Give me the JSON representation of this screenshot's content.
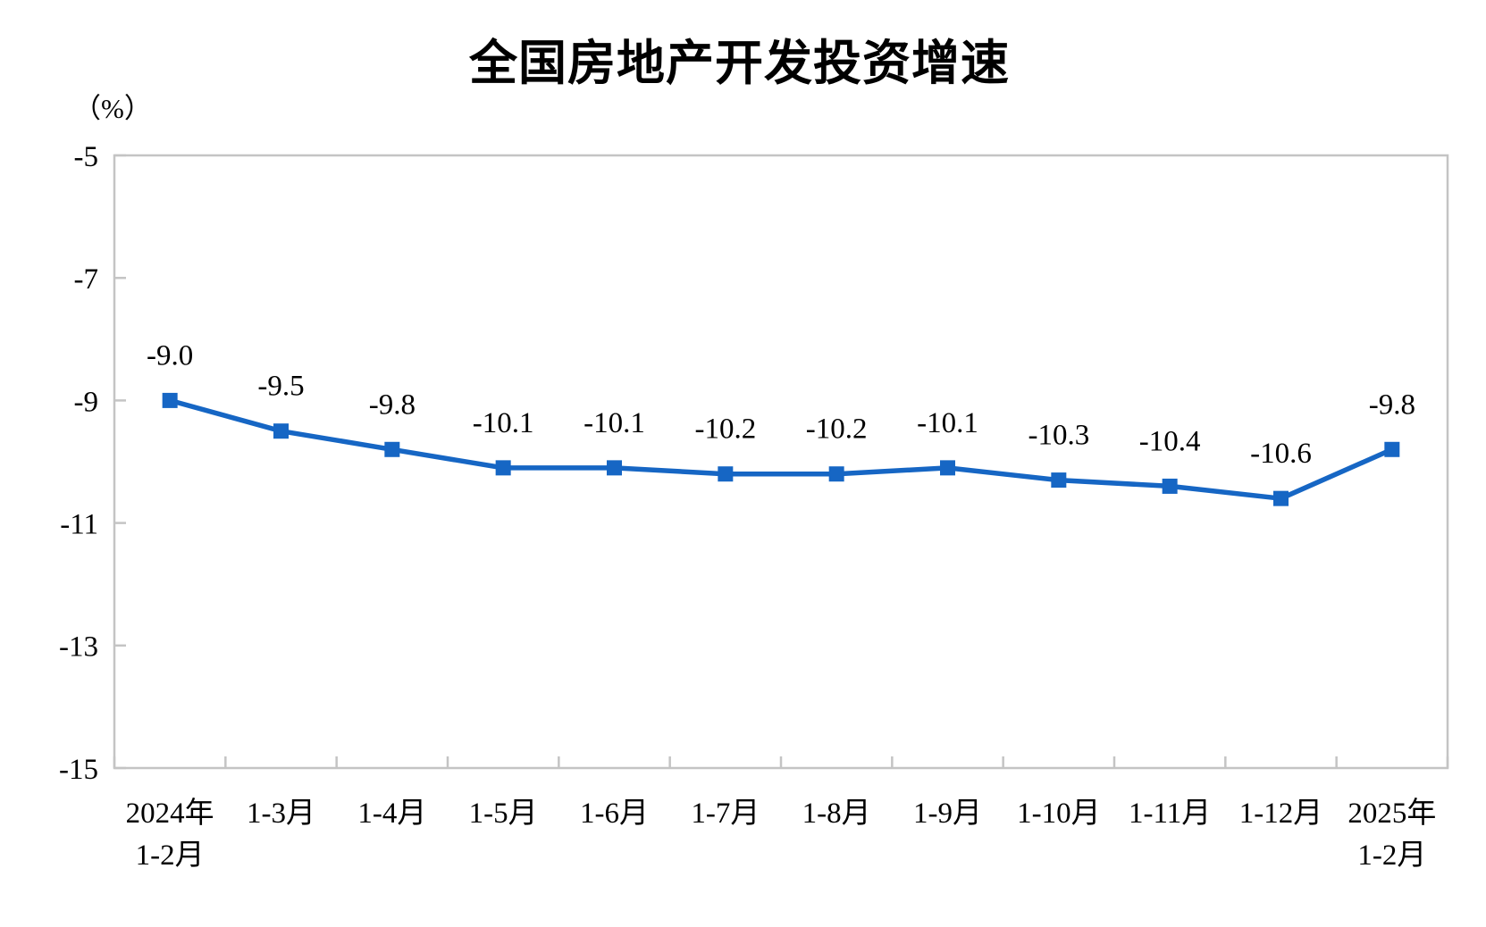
{
  "chart_data": {
    "type": "line",
    "title": "全国房地产开发投资增速",
    "unit_label": "（%）",
    "categories": [
      [
        "2024年",
        "1-2月"
      ],
      [
        "1-3月"
      ],
      [
        "1-4月"
      ],
      [
        "1-5月"
      ],
      [
        "1-6月"
      ],
      [
        "1-7月"
      ],
      [
        "1-8月"
      ],
      [
        "1-9月"
      ],
      [
        "1-10月"
      ],
      [
        "1-11月"
      ],
      [
        "1-12月"
      ],
      [
        "2025年",
        "1-2月"
      ]
    ],
    "values": [
      -9.0,
      -9.5,
      -9.8,
      -10.1,
      -10.1,
      -10.2,
      -10.2,
      -10.1,
      -10.3,
      -10.4,
      -10.6,
      -9.8
    ],
    "point_labels": [
      "-9.0",
      "-9.5",
      "-9.8",
      "-10.1",
      "-10.1",
      "-10.2",
      "-10.2",
      "-10.1",
      "-10.3",
      "-10.4",
      "-10.6",
      "-9.8"
    ],
    "ylim": [
      -15,
      -5
    ],
    "yticks": [
      -5,
      -7,
      -9,
      -11,
      -13,
      -15
    ],
    "xlabel": "",
    "ylabel": "（%）",
    "grid": false,
    "legend": "none",
    "marker": "square",
    "colors": {
      "line": "#1666c4",
      "axis": "#c4c4c4",
      "text": "#000000",
      "background": "#ffffff"
    }
  }
}
